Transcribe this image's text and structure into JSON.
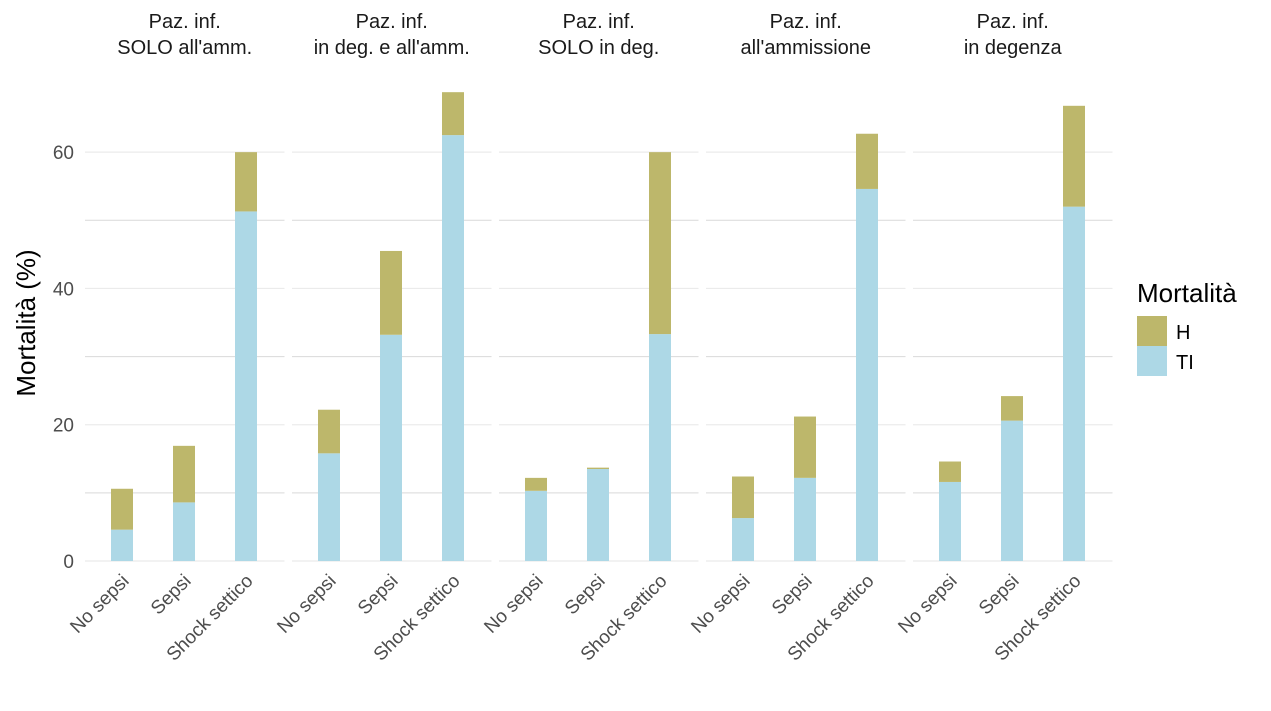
{
  "chart_data": {
    "type": "bar",
    "stacked": true,
    "ylabel": "Mortalità (%)",
    "xlabel": "",
    "ylim": [
      0,
      70
    ],
    "yticks": [
      0,
      20,
      40,
      60
    ],
    "grid": true,
    "legend": {
      "title": "Mortalità",
      "position": "right",
      "entries": [
        "H",
        "TI"
      ]
    },
    "colors": {
      "H": "#bdb76b",
      "TI": "#add8e6"
    },
    "categories": [
      "No sepsi",
      "Sepsi",
      "Shock settico"
    ],
    "panels": [
      {
        "title": [
          "Paz. inf.",
          "SOLO all'amm."
        ],
        "series": [
          {
            "name": "TI",
            "values": [
              4.6,
              8.6,
              51.3
            ]
          },
          {
            "name": "H",
            "values": [
              6.0,
              8.3,
              8.7
            ]
          }
        ]
      },
      {
        "title": [
          "Paz. inf.",
          "in deg. e all'amm."
        ],
        "series": [
          {
            "name": "TI",
            "values": [
              15.8,
              33.2,
              62.5
            ]
          },
          {
            "name": "H",
            "values": [
              6.4,
              12.3,
              6.3
            ]
          }
        ]
      },
      {
        "title": [
          "Paz. inf.",
          "SOLO in deg."
        ],
        "series": [
          {
            "name": "TI",
            "values": [
              10.3,
              13.5,
              33.3
            ]
          },
          {
            "name": "H",
            "values": [
              1.9,
              0.2,
              26.7
            ]
          }
        ]
      },
      {
        "title": [
          "Paz. inf.",
          "all'ammissione"
        ],
        "series": [
          {
            "name": "TI",
            "values": [
              6.3,
              12.2,
              54.6
            ]
          },
          {
            "name": "H",
            "values": [
              6.1,
              9.0,
              8.1
            ]
          }
        ]
      },
      {
        "title": [
          "Paz. inf.",
          "in degenza"
        ],
        "series": [
          {
            "name": "TI",
            "values": [
              11.6,
              20.6,
              52.0
            ]
          },
          {
            "name": "H",
            "values": [
              3.0,
              3.6,
              14.8
            ]
          }
        ]
      }
    ]
  }
}
